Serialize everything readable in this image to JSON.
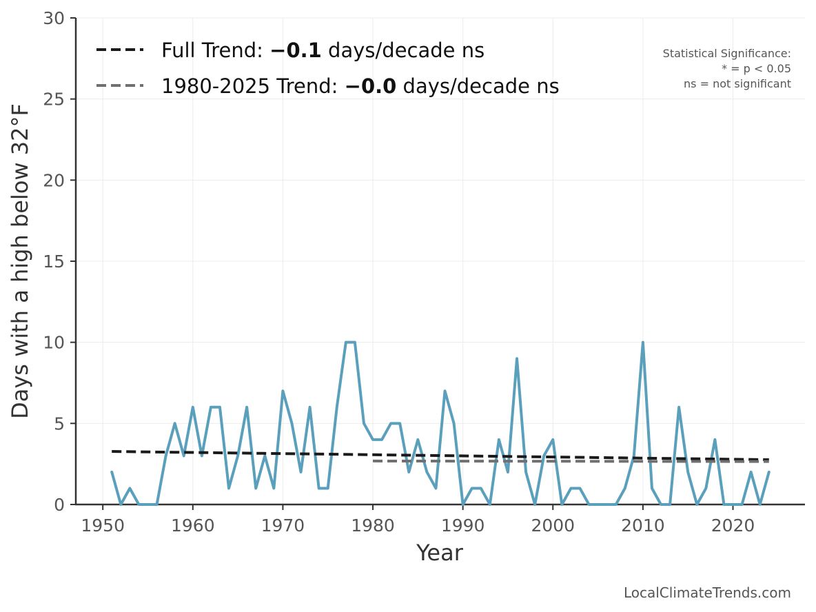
{
  "chart_data": {
    "type": "line",
    "title": "",
    "xlabel": "Year",
    "ylabel": "Days with a high below 32°F",
    "xlim": [
      1947,
      2028
    ],
    "ylim": [
      0,
      30
    ],
    "xticks": [
      1950,
      1960,
      1970,
      1980,
      1990,
      2000,
      2010,
      2020
    ],
    "yticks": [
      0,
      5,
      10,
      15,
      20,
      25,
      30
    ],
    "grid": true,
    "series": [
      {
        "name": "Days with a high below 32°F",
        "color": "#5a9fbb",
        "x": [
          1951,
          1952,
          1953,
          1954,
          1955,
          1956,
          1957,
          1958,
          1959,
          1960,
          1961,
          1962,
          1963,
          1964,
          1965,
          1966,
          1967,
          1968,
          1969,
          1970,
          1971,
          1972,
          1973,
          1974,
          1975,
          1976,
          1977,
          1978,
          1979,
          1980,
          1981,
          1982,
          1983,
          1984,
          1985,
          1986,
          1987,
          1988,
          1989,
          1990,
          1991,
          1992,
          1993,
          1994,
          1995,
          1996,
          1997,
          1998,
          1999,
          2000,
          2001,
          2002,
          2003,
          2004,
          2005,
          2006,
          2007,
          2008,
          2009,
          2010,
          2011,
          2012,
          2013,
          2014,
          2015,
          2016,
          2017,
          2018,
          2019,
          2020,
          2021,
          2022,
          2023,
          2024
        ],
        "values": [
          2,
          0,
          1,
          0,
          0,
          0,
          3,
          5,
          3,
          6,
          3,
          6,
          6,
          1,
          3,
          6,
          1,
          3,
          1,
          7,
          5,
          2,
          6,
          1,
          1,
          6,
          10,
          10,
          5,
          4,
          4,
          5,
          5,
          2,
          4,
          2,
          1,
          7,
          5,
          0,
          1,
          1,
          0,
          4,
          2,
          9,
          2,
          0,
          3,
          4,
          0,
          1,
          1,
          0,
          0,
          0,
          0,
          1,
          3,
          10,
          1,
          0,
          0,
          6,
          2,
          0,
          1,
          4,
          0,
          0,
          0,
          2,
          0,
          2
        ]
      }
    ],
    "trends": [
      {
        "name": "Full Trend",
        "color": "#1a1a1a",
        "x_start": 1951,
        "x_end": 2024,
        "y_start": 3.27,
        "y_end": 2.76,
        "label_prefix": "Full Trend: ",
        "label_value": "−0.1",
        "label_suffix": " days/decade ns"
      },
      {
        "name": "1980-2025 Trend",
        "color": "#707070",
        "x_start": 1980,
        "x_end": 2024,
        "y_start": 2.68,
        "y_end": 2.65,
        "label_prefix": "1980-2025 Trend: ",
        "label_value": "−0.0",
        "label_suffix": " days/decade ns"
      }
    ],
    "legend_position": "top-left",
    "annotation": {
      "lines": [
        "Statistical Significance:",
        "* = p < 0.05",
        "ns = not significant"
      ],
      "position": "top-right"
    },
    "watermark": "LocalClimateTrends.com"
  }
}
